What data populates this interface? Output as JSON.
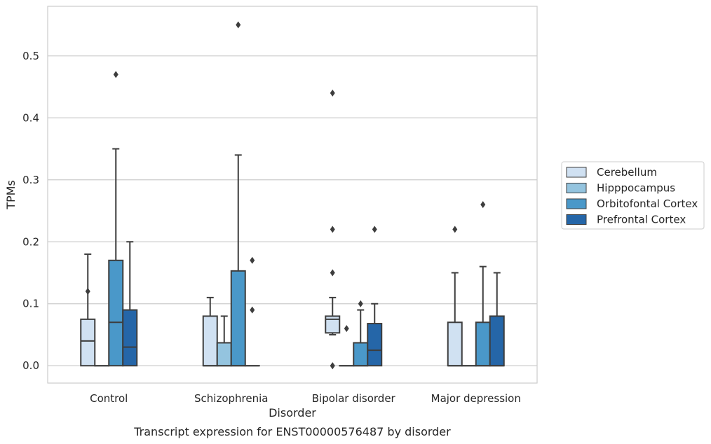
{
  "chart_data": {
    "type": "box",
    "caption": "Transcript expression for ENST00000576487 by disorder",
    "xlabel": "Disorder",
    "ylabel": "TPMs",
    "ylim": [
      -0.028,
      0.58
    ],
    "yticks": [
      "0.0",
      "0.1",
      "0.2",
      "0.3",
      "0.4",
      "0.5"
    ],
    "ytick_values": [
      0.0,
      0.1,
      0.2,
      0.3,
      0.4,
      0.5
    ],
    "grid": true,
    "legend_position": "right",
    "categories": [
      "Control",
      "Schizophrenia",
      "Bipolar disorder",
      "Major depression"
    ],
    "series": [
      {
        "name": "Cerebellum",
        "color": "#d0e1f2",
        "boxes": [
          {
            "min": 0.0,
            "q1": 0.0,
            "median": 0.04,
            "q3": 0.075,
            "max": 0.18,
            "outliers": [
              0.12
            ]
          },
          {
            "min": 0.0,
            "q1": 0.0,
            "median": 0.0,
            "q3": 0.08,
            "max": 0.11,
            "outliers": []
          },
          {
            "min": 0.05,
            "q1": 0.053,
            "median": 0.075,
            "q3": 0.08,
            "max": 0.11,
            "outliers": [
              0.0,
              0.0,
              0.15,
              0.22,
              0.44
            ]
          },
          {
            "min": 0.0,
            "q1": 0.0,
            "median": 0.0,
            "q3": 0.07,
            "max": 0.15,
            "outliers": [
              0.22
            ]
          }
        ]
      },
      {
        "name": "Hipppocampus",
        "color": "#94c4df",
        "boxes": [
          {
            "min": 0.0,
            "q1": 0.0,
            "median": 0.0,
            "q3": 0.0,
            "max": 0.0,
            "outliers": []
          },
          {
            "min": 0.0,
            "q1": 0.0,
            "median": 0.0,
            "q3": 0.037,
            "max": 0.08,
            "outliers": []
          },
          {
            "min": 0.0,
            "q1": 0.0,
            "median": 0.0,
            "q3": 0.0,
            "max": 0.0,
            "outliers": [
              0.06
            ]
          },
          {
            "min": 0.0,
            "q1": 0.0,
            "median": 0.0,
            "q3": 0.0,
            "max": 0.0,
            "outliers": []
          }
        ]
      },
      {
        "name": "Orbitofontal Cortex",
        "color": "#4a98c9",
        "boxes": [
          {
            "min": 0.0,
            "q1": 0.0,
            "median": 0.07,
            "q3": 0.17,
            "max": 0.35,
            "outliers": [
              0.47
            ]
          },
          {
            "min": 0.0,
            "q1": 0.0,
            "median": 0.0,
            "q3": 0.153,
            "max": 0.34,
            "outliers": [
              0.55
            ]
          },
          {
            "min": 0.0,
            "q1": 0.0,
            "median": 0.0,
            "q3": 0.037,
            "max": 0.09,
            "outliers": [
              0.1
            ]
          },
          {
            "min": 0.0,
            "q1": 0.0,
            "median": 0.0,
            "q3": 0.07,
            "max": 0.16,
            "outliers": [
              0.26
            ]
          }
        ]
      },
      {
        "name": "Prefrontal Cortex",
        "color": "#2566a8",
        "boxes": [
          {
            "min": 0.0,
            "q1": 0.0,
            "median": 0.03,
            "q3": 0.09,
            "max": 0.2,
            "outliers": []
          },
          {
            "min": 0.0,
            "q1": 0.0,
            "median": 0.0,
            "q3": 0.0,
            "max": 0.0,
            "outliers": [
              0.09,
              0.17
            ]
          },
          {
            "min": 0.0,
            "q1": 0.0,
            "median": 0.025,
            "q3": 0.068,
            "max": 0.1,
            "outliers": [
              0.22
            ]
          },
          {
            "min": 0.0,
            "q1": 0.0,
            "median": 0.0,
            "q3": 0.08,
            "max": 0.15,
            "outliers": []
          }
        ]
      }
    ]
  }
}
